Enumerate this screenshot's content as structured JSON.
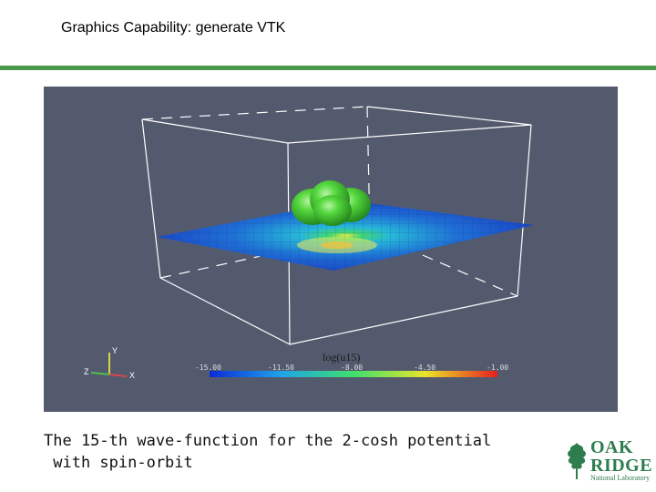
{
  "slide": {
    "title": "Graphics Capability: generate VTK"
  },
  "colors": {
    "rule": "#4a9a4a",
    "viz_background": "#545a6e",
    "isosurface": "#4fd13a",
    "logo_green": "#2e7d4f"
  },
  "visualization": {
    "colorbar_title": "log(u15)",
    "colorbar_ticks": [
      "-15.00",
      "-11.50",
      "-8.00",
      "-4.50",
      "-1.00"
    ],
    "axes": {
      "y": "Y",
      "z": "Z",
      "x": "X"
    }
  },
  "caption": {
    "line1": "The 15-th wave-function for the 2-cosh potential",
    "line2": " with spin-orbit"
  },
  "logo": {
    "word1": "OAK",
    "word2": "RIDGE",
    "word3": "National Laboratory"
  }
}
